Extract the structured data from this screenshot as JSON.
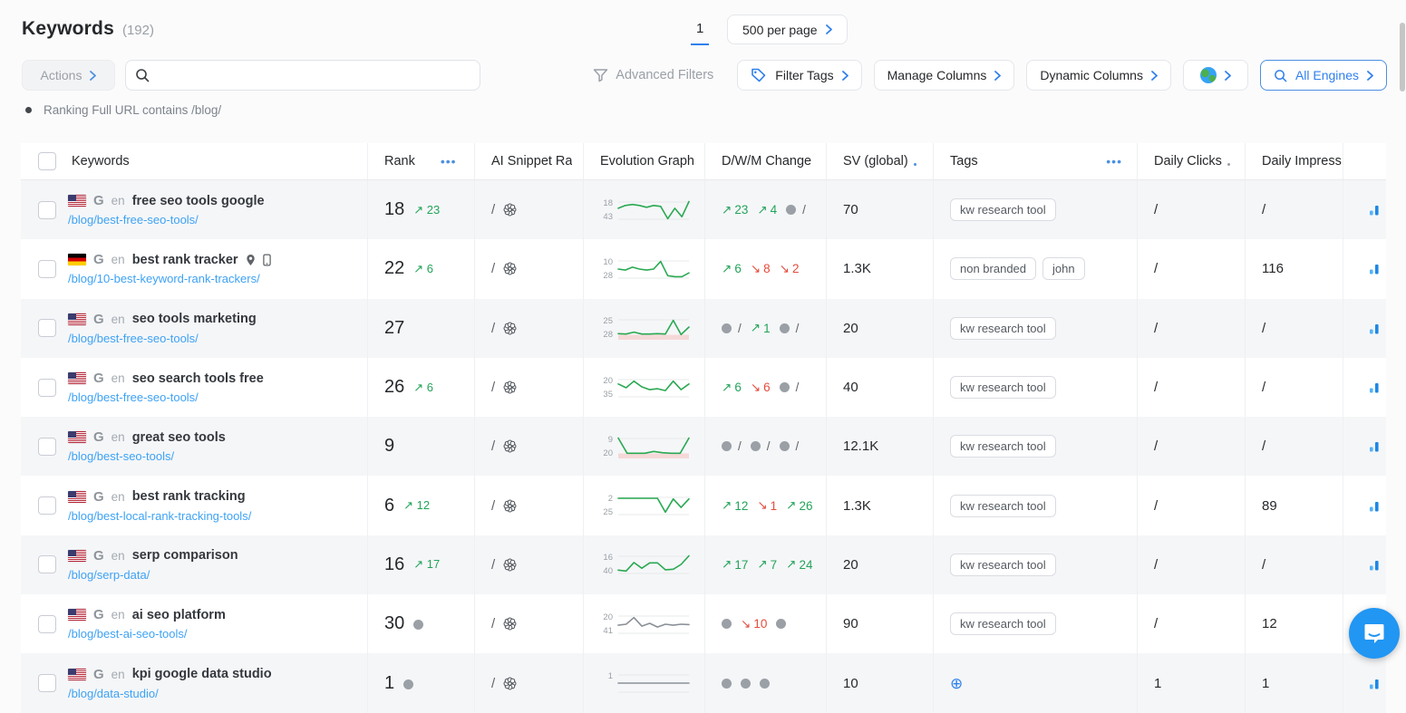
{
  "header": {
    "title": "Keywords",
    "count": "(192)",
    "page": "1",
    "per_page": "500 per page"
  },
  "toolbar": {
    "actions": "Actions",
    "search_placeholder": "",
    "advanced_filters": "Advanced Filters",
    "filter_tags": "Filter Tags",
    "manage_columns": "Manage Columns",
    "dynamic_columns": "Dynamic Columns",
    "all_engines": "All Engines"
  },
  "active_filter": "Ranking Full URL contains /blog/",
  "colors": {
    "accent": "#2f80ed",
    "green": "#2aa952",
    "red": "#e54b3c",
    "gray_line": "#8a9097",
    "link": "#3da2f5",
    "band_pink": "#f5d9d8"
  },
  "table": {
    "columns": {
      "keywords": "Keywords",
      "rank": "Rank",
      "ai_snippet": "AI Snippet Ra",
      "evolution": "Evolution Graph",
      "dwm": "D/W/M Change",
      "sv": "SV (global)",
      "tags": "Tags",
      "daily_clicks": "Daily Clicks",
      "daily_impressions": "Daily Impress"
    },
    "rows": [
      {
        "flag": "us",
        "engine": "G",
        "lang": "en",
        "keyword": "free seo tools google",
        "url": "/blog/best-free-seo-tools/",
        "icons": [],
        "rank": "18",
        "rank_dir": "up",
        "rank_change": "23",
        "ai": "/",
        "spark": {
          "top": "18",
          "bottom": "43",
          "color": "green",
          "band": false,
          "pts": [
            0.4,
            0.25,
            0.2,
            0.25,
            0.35,
            0.25,
            0.3,
            0.95,
            0.4,
            0.85,
            0.05
          ]
        },
        "dwm": [
          [
            "up",
            "23"
          ],
          [
            "up",
            "4"
          ],
          [
            "dotslash",
            ""
          ]
        ],
        "sv": "70",
        "tags": [
          "kw research tool"
        ],
        "add_tag": false,
        "clicks": "/",
        "impr": "/"
      },
      {
        "flag": "de",
        "engine": "G",
        "lang": "en",
        "keyword": "best rank tracker",
        "url": "/blog/10-best-keyword-rank-trackers/",
        "icons": [
          "location",
          "mobile"
        ],
        "rank": "22",
        "rank_dir": "up",
        "rank_change": "6",
        "ai": "/",
        "spark": {
          "top": "10",
          "bottom": "28",
          "color": "green",
          "band": false,
          "pts": [
            0.5,
            0.55,
            0.4,
            0.5,
            0.55,
            0.5,
            0.1,
            0.85,
            0.9,
            0.9,
            0.7
          ]
        },
        "dwm": [
          [
            "up",
            "6"
          ],
          [
            "down",
            "8"
          ],
          [
            "down",
            "2"
          ]
        ],
        "sv": "1.3K",
        "tags": [
          "non branded",
          "john"
        ],
        "add_tag": false,
        "clicks": "/",
        "impr": "116"
      },
      {
        "flag": "us",
        "engine": "G",
        "lang": "en",
        "keyword": "seo tools marketing",
        "url": "/blog/best-free-seo-tools/",
        "icons": [],
        "rank": "27",
        "rank_dir": null,
        "rank_change": null,
        "ai": "/",
        "spark": {
          "top": "25",
          "bottom": "28",
          "color": "green",
          "band": true,
          "pts": [
            0.8,
            0.82,
            0.72,
            0.82,
            0.82,
            0.8,
            0.82,
            0.1,
            0.85,
            0.45
          ]
        },
        "dwm": [
          [
            "dotslash",
            ""
          ],
          [
            "up",
            "1"
          ],
          [
            "dotslash",
            ""
          ]
        ],
        "sv": "20",
        "tags": [
          "kw research tool"
        ],
        "add_tag": false,
        "clicks": "/",
        "impr": "/"
      },
      {
        "flag": "us",
        "engine": "G",
        "lang": "en",
        "keyword": "seo search tools free",
        "url": "/blog/best-free-seo-tools/",
        "icons": [],
        "rank": "26",
        "rank_dir": "up",
        "rank_change": "6",
        "ai": "/",
        "spark": {
          "top": "20",
          "bottom": "35",
          "color": "green",
          "band": false,
          "pts": [
            0.3,
            0.5,
            0.15,
            0.45,
            0.6,
            0.55,
            0.65,
            0.15,
            0.6,
            0.3
          ]
        },
        "dwm": [
          [
            "up",
            "6"
          ],
          [
            "down",
            "6"
          ],
          [
            "dotslash",
            ""
          ]
        ],
        "sv": "40",
        "tags": [
          "kw research tool"
        ],
        "add_tag": false,
        "clicks": "/",
        "impr": "/"
      },
      {
        "flag": "us",
        "engine": "G",
        "lang": "en",
        "keyword": "great seo tools",
        "url": "/blog/best-seo-tools/",
        "icons": [],
        "rank": "9",
        "rank_dir": null,
        "rank_change": null,
        "ai": "/",
        "spark": {
          "top": "9",
          "bottom": "20",
          "color": "green",
          "band": true,
          "pts": [
            0.05,
            0.85,
            0.85,
            0.85,
            0.75,
            0.82,
            0.85,
            0.85,
            0.05
          ]
        },
        "dwm": [
          [
            "dotslash",
            ""
          ],
          [
            "dotslash",
            ""
          ],
          [
            "dotslash",
            ""
          ]
        ],
        "sv": "12.1K",
        "tags": [
          "kw research tool"
        ],
        "add_tag": false,
        "clicks": "/",
        "impr": "/"
      },
      {
        "flag": "us",
        "engine": "G",
        "lang": "en",
        "keyword": "best rank tracking",
        "url": "/blog/best-local-rank-tracking-tools/",
        "icons": [],
        "rank": "6",
        "rank_dir": "up",
        "rank_change": "12",
        "ai": "/",
        "spark": {
          "top": "2",
          "bottom": "25",
          "color": "green",
          "band": false,
          "pts": [
            0.12,
            0.12,
            0.12,
            0.12,
            0.12,
            0.12,
            0.85,
            0.15,
            0.6,
            0.15
          ]
        },
        "dwm": [
          [
            "up",
            "12"
          ],
          [
            "down",
            "1"
          ],
          [
            "up",
            "26"
          ]
        ],
        "sv": "1.3K",
        "tags": [
          "kw research tool"
        ],
        "add_tag": false,
        "clicks": "/",
        "impr": "89"
      },
      {
        "flag": "us",
        "engine": "G",
        "lang": "en",
        "keyword": "serp comparison",
        "url": "/blog/serp-data/",
        "icons": [],
        "rank": "16",
        "rank_dir": "up",
        "rank_change": "17",
        "ai": "/",
        "spark": {
          "top": "16",
          "bottom": "40",
          "color": "green",
          "band": false,
          "pts": [
            0.8,
            0.85,
            0.4,
            0.7,
            0.42,
            0.42,
            0.78,
            0.75,
            0.5,
            0.05
          ]
        },
        "dwm": [
          [
            "up",
            "17"
          ],
          [
            "up",
            "7"
          ],
          [
            "up",
            "24"
          ]
        ],
        "sv": "20",
        "tags": [
          "kw research tool"
        ],
        "add_tag": false,
        "clicks": "/",
        "impr": "/"
      },
      {
        "flag": "us",
        "engine": "G",
        "lang": "en",
        "keyword": "ai seo platform",
        "url": "/blog/best-ai-seo-tools/",
        "icons": [],
        "rank": "30",
        "rank_dir": "dot",
        "rank_change": null,
        "ai": "/",
        "spark": {
          "top": "20",
          "bottom": "41",
          "color": "gray",
          "band": false,
          "pts": [
            0.55,
            0.5,
            0.15,
            0.6,
            0.45,
            0.65,
            0.5,
            0.55,
            0.5,
            0.52
          ]
        },
        "dwm": [
          [
            "dot",
            ""
          ],
          [
            "down",
            "10"
          ],
          [
            "dot",
            ""
          ]
        ],
        "sv": "90",
        "tags": [
          "kw research tool"
        ],
        "add_tag": false,
        "clicks": "/",
        "impr": "12"
      },
      {
        "flag": "us",
        "engine": "G",
        "lang": "en",
        "keyword": "kpi google data studio",
        "url": "/blog/data-studio/",
        "icons": [],
        "rank": "1",
        "rank_dir": "dot",
        "rank_change": null,
        "ai": "/",
        "spark": {
          "top": "1",
          "bottom": "",
          "color": "gray",
          "band": false,
          "pts": [
            0.5,
            0.5,
            0.5
          ]
        },
        "dwm": [
          [
            "dot",
            ""
          ],
          [
            "dot",
            ""
          ],
          [
            "dot",
            ""
          ]
        ],
        "sv": "10",
        "tags": [],
        "add_tag": true,
        "clicks": "1",
        "impr": "1"
      }
    ]
  }
}
